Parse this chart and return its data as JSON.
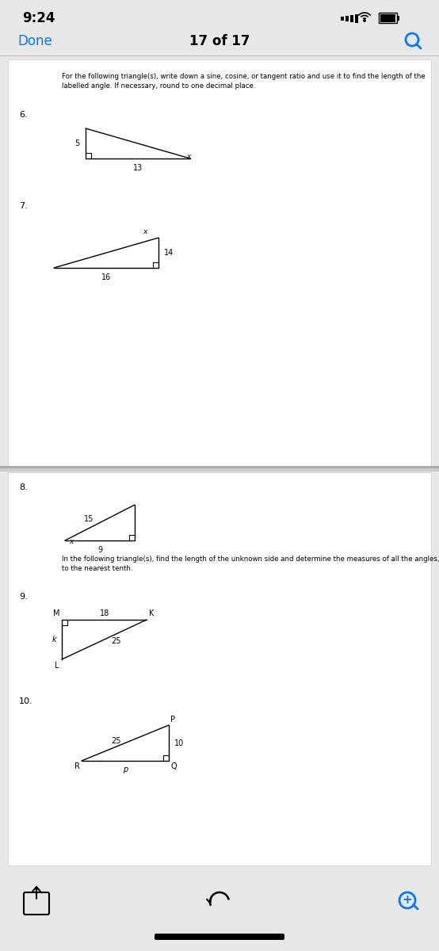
{
  "bg_color": "#e8e8e8",
  "page_bg": "#ffffff",
  "status_time": "9:24",
  "nav_done": "Done",
  "nav_done_color": "#007AFF",
  "nav_center": "17 of 17",
  "inst1": "For the following triangle(s), write down a sine, cosine, or tangent ratio and use it to find the length of the\nlabelled angle. If necessary, round to one decimal place.",
  "inst2": "In the following triangle(s), find the length of the unknown side and determine the measures of all the angles,\nto the nearest tenth.",
  "black": "#000000",
  "blue": "#007AFF",
  "gray_sep": "#bbbbbb"
}
